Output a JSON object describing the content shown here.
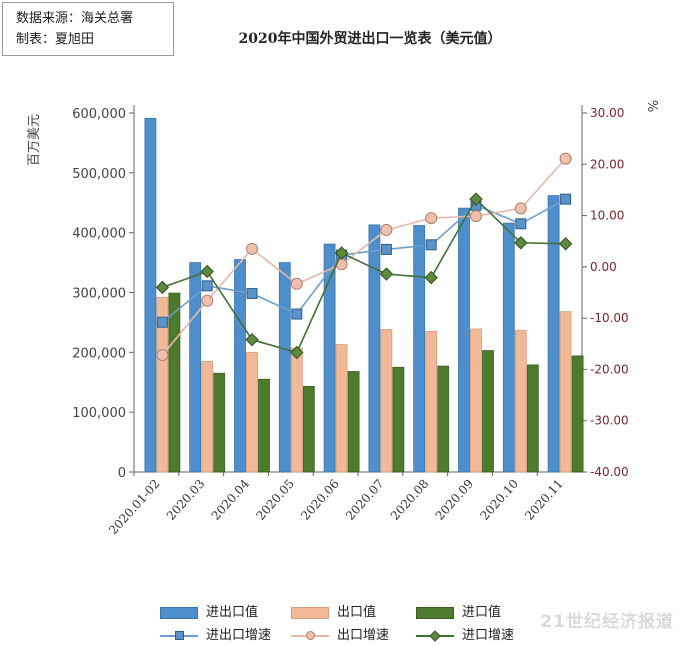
{
  "source_box": {
    "line1": "数据来源：海关总署",
    "line2": "制表：夏旭田"
  },
  "chart_data": {
    "type": "bar",
    "title": "2020年中国外贸进出口一览表（美元值）",
    "ylabel_left": "百万美元",
    "ylabel_right": "%",
    "categories": [
      "2020.01-02",
      "2020.03",
      "2020.04",
      "2020.05",
      "2020.06",
      "2020.07",
      "2020.08",
      "2020.09",
      "2020.10",
      "2020.11"
    ],
    "ylim_left": [
      0,
      600000
    ],
    "yticks_left": [
      "0",
      "100,000",
      "200,000",
      "300,000",
      "400,000",
      "500,000",
      "600,000"
    ],
    "ylim_right": [
      -40,
      30
    ],
    "yticks_right": [
      "-40.00",
      "-30.00",
      "-20.00",
      "-10.00",
      "0.00",
      "10.00",
      "20.00",
      "30.00"
    ],
    "bar_series": [
      {
        "name": "进出口值",
        "color": "#4e8fcb",
        "values": [
          591000,
          350000,
          355000,
          350000,
          381000,
          413000,
          412000,
          441000,
          416000,
          462000
        ]
      },
      {
        "name": "出口值",
        "color": "#f2b999",
        "values": [
          292000,
          185000,
          200000,
          207000,
          213000,
          238000,
          235000,
          239000,
          237000,
          268000
        ]
      },
      {
        "name": "进口值",
        "color": "#4e7a2e",
        "values": [
          299000,
          165000,
          155000,
          143000,
          168000,
          175000,
          177000,
          203000,
          179000,
          194000
        ]
      }
    ],
    "line_series": [
      {
        "name": "进出口增速",
        "color": "#6c9fcf",
        "marker": "square",
        "values": [
          -10.8,
          -3.7,
          -5.2,
          -9.2,
          2.3,
          3.4,
          4.3,
          12.0,
          8.4,
          13.2
        ]
      },
      {
        "name": "出口增速",
        "color": "#e5b9a9",
        "marker": "circle",
        "values": [
          -17.2,
          -6.6,
          3.5,
          -3.3,
          0.5,
          7.2,
          9.5,
          9.9,
          11.4,
          21.1
        ]
      },
      {
        "name": "进口增速",
        "color": "#43703a",
        "marker": "diamond",
        "values": [
          -4.0,
          -0.9,
          -14.2,
          -16.7,
          2.7,
          -1.4,
          -2.1,
          13.2,
          4.7,
          4.5
        ]
      }
    ],
    "grid": "none",
    "legend_position": "bottom"
  },
  "watermark": "21世纪经济报道"
}
